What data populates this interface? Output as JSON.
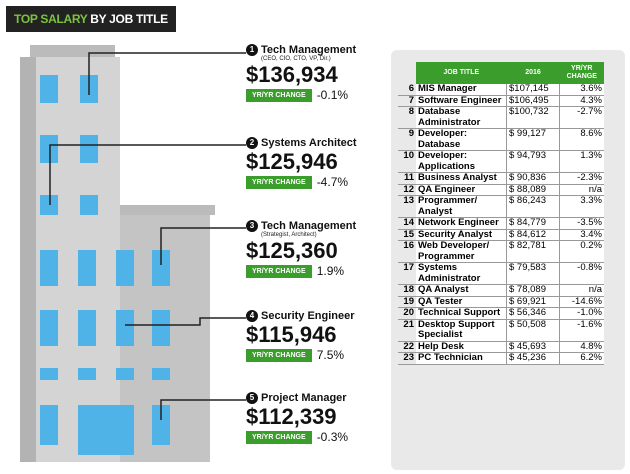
{
  "header": {
    "title_highlight": "TOP SALARY",
    "title": "BY JOB TITLE"
  },
  "top_jobs": [
    {
      "rank": "1",
      "title": "Tech Management",
      "subtitle": "(CEO, CIO, CTO, VP, Dir.)",
      "salary": "$136,934",
      "change_label": "YR/YR CHANGE",
      "change": "-0.1%"
    },
    {
      "rank": "2",
      "title": "Systems Architect",
      "salary": "$125,946",
      "change_label": "YR/YR CHANGE",
      "change": "-4.7%"
    },
    {
      "rank": "3",
      "title": "Tech Management",
      "subtitle": "(Strategist, Architect)",
      "salary": "$125,360",
      "change_label": "YR/YR CHANGE",
      "change": "1.9%"
    },
    {
      "rank": "4",
      "title": "Security Engineer",
      "salary": "$115,946",
      "change_label": "YR/YR CHANGE",
      "change": "7.5%"
    },
    {
      "rank": "5",
      "title": "Project Manager",
      "salary": "$112,339",
      "change_label": "YR/YR CHANGE",
      "change": "-0.3%"
    }
  ],
  "table": {
    "headers": [
      "JOB TITLE",
      "2016",
      "YR/YR CHANGE"
    ],
    "rows": [
      [
        "6",
        "MIS Manager",
        "$107,145",
        "3.6%"
      ],
      [
        "7",
        "Software Engineer",
        "$106,495",
        "4.3%"
      ],
      [
        "8",
        "Database Administrator",
        "$100,732",
        "-2.7%"
      ],
      [
        "9",
        "Developer: Database",
        "$ 99,127",
        "8.6%"
      ],
      [
        "10",
        "Developer: Applications",
        "$ 94,793",
        "1.3%"
      ],
      [
        "11",
        "Business Analyst",
        "$ 90,836",
        "-2.3%"
      ],
      [
        "12",
        "QA Engineer",
        "$ 88,089",
        "n/a"
      ],
      [
        "13",
        "Programmer/ Analyst",
        "$ 86,243",
        "3.3%"
      ],
      [
        "14",
        "Network Engineer",
        "$ 84,779",
        "-3.5%"
      ],
      [
        "15",
        "Security Analyst",
        "$ 84,612",
        "3.4%"
      ],
      [
        "16",
        "Web Developer/ Programmer",
        "$ 82,781",
        "0.2%"
      ],
      [
        "17",
        "Systems Administrator",
        "$ 79,583",
        "-0.8%"
      ],
      [
        "18",
        "QA Analyst",
        "$ 78,089",
        "n/a"
      ],
      [
        "19",
        "QA Tester",
        "$ 69,921",
        "-14.6%"
      ],
      [
        "20",
        "Technical Support",
        "$ 56,346",
        "-1.0%"
      ],
      [
        "21",
        "Desktop Support Specialist",
        "$ 50,508",
        "-1.6%"
      ],
      [
        "22",
        "Help Desk",
        "$ 45,693",
        "4.8%"
      ],
      [
        "23",
        "PC Technician",
        "$ 45,236",
        "6.2%"
      ]
    ]
  }
}
